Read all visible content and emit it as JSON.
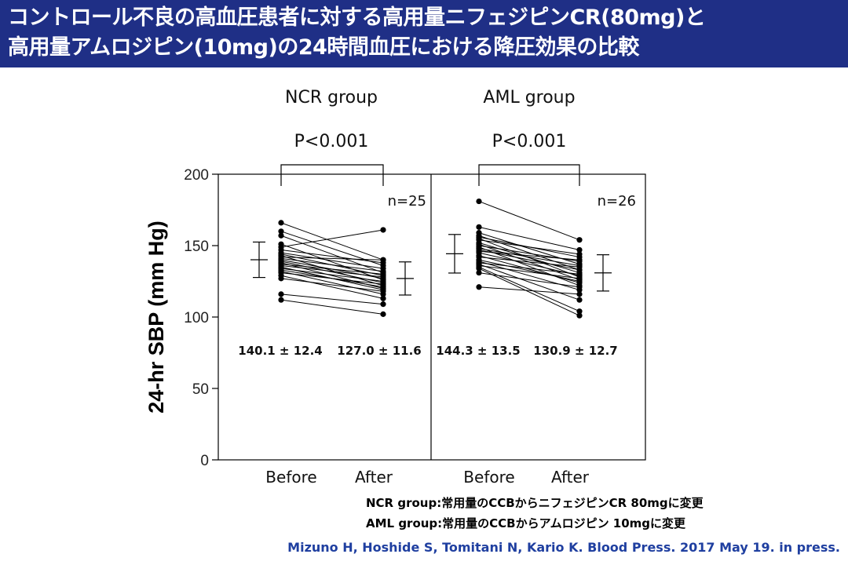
{
  "slide": {
    "title_line1": "コントロール不良の高血圧患者に対する高用量ニフェジピンCR(80mg)と",
    "title_line2": "高用量アムロジピン(10mg)の24時間血圧における降圧効果の比較",
    "note_line1": "NCR group:常用量のCCBからニフェジピンCR 80mgに変更",
    "note_line2": "AML group:常用量のCCBからアムロジピン 10mgに変更",
    "citation": "Mizuno H, Hoshide S, Tomitani N, Kario K. Blood Press. 2017 May 19. in press."
  },
  "chart_data": {
    "type": "scatter",
    "ylabel": "24-hr SBP (mm Hg)",
    "ylim": [
      0,
      200
    ],
    "yticks": [
      0,
      50,
      100,
      150,
      200
    ],
    "categories": [
      "Before",
      "After"
    ],
    "panels": [
      {
        "group": "NCR group",
        "p_value": "P<0.001",
        "n_label": "n=25",
        "summary": [
          {
            "category": "Before",
            "mean": 140.1,
            "sd": 12.4,
            "label": "140.1 ± 12.4"
          },
          {
            "category": "After",
            "mean": 127.0,
            "sd": 11.6,
            "label": "127.0 ± 11.6"
          }
        ],
        "pairs": [
          [
            166,
            140
          ],
          [
            160,
            136
          ],
          [
            157,
            131
          ],
          [
            151,
            126
          ],
          [
            149,
            161
          ],
          [
            147,
            138
          ],
          [
            145,
            134
          ],
          [
            144,
            129
          ],
          [
            143,
            122
          ],
          [
            142,
            140
          ],
          [
            141,
            132
          ],
          [
            140,
            127
          ],
          [
            139,
            124
          ],
          [
            138,
            120
          ],
          [
            137,
            130
          ],
          [
            136,
            128
          ],
          [
            135,
            119
          ],
          [
            134,
            125
          ],
          [
            133,
            121
          ],
          [
            132,
            116
          ],
          [
            131,
            123
          ],
          [
            129,
            113
          ],
          [
            127,
            118
          ],
          [
            116,
            109
          ],
          [
            112,
            102
          ]
        ]
      },
      {
        "group": "AML group",
        "p_value": "P<0.001",
        "n_label": "n=26",
        "summary": [
          {
            "category": "Before",
            "mean": 144.3,
            "sd": 13.5,
            "label": "144.3 ± 13.5"
          },
          {
            "category": "After",
            "mean": 130.9,
            "sd": 12.7,
            "label": "130.9 ± 12.7"
          }
        ],
        "pairs": [
          [
            181,
            154
          ],
          [
            163,
            147
          ],
          [
            159,
            137
          ],
          [
            157,
            133
          ],
          [
            156,
            142
          ],
          [
            155,
            128
          ],
          [
            154,
            144
          ],
          [
            152,
            131
          ],
          [
            151,
            126
          ],
          [
            150,
            139
          ],
          [
            149,
            122
          ],
          [
            148,
            136
          ],
          [
            147,
            133
          ],
          [
            146,
            140
          ],
          [
            145,
            129
          ],
          [
            143,
            124
          ],
          [
            142,
            135
          ],
          [
            140,
            125
          ],
          [
            139,
            119
          ],
          [
            138,
            130
          ],
          [
            137,
            112
          ],
          [
            136,
            127
          ],
          [
            135,
            104
          ],
          [
            134,
            101
          ],
          [
            131,
            121
          ],
          [
            121,
            116
          ]
        ]
      }
    ]
  }
}
